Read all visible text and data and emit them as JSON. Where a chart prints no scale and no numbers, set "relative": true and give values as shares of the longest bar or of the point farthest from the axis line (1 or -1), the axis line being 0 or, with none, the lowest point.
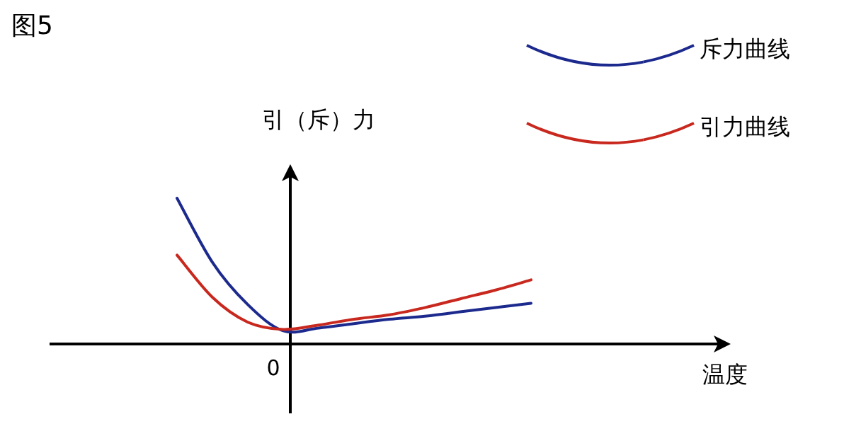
{
  "chart_data": {
    "type": "line",
    "title": "图5",
    "ylabel": "引（斥）力",
    "relative": true,
    "legend": "top right",
    "annotations": [
      "0",
      "温度"
    ],
    "categories": [
      null,
      null,
      null,
      null,
      null,
      null,
      null,
      null,
      null,
      null,
      null
    ],
    "series": [
      {
        "name": "斥力曲线",
        "color": "#1c2a8e",
        "values": [
          1,
          0.56,
          0.27,
          0.09,
          0.11,
          0.14,
          0.17,
          0.19,
          0.22,
          0.25,
          0.28
        ]
      },
      {
        "name": "引力曲线",
        "color": "#c8281e",
        "values": [
          0.61,
          0.32,
          0.15,
          0.1,
          0.13,
          0.17,
          0.2,
          0.25,
          0.31,
          0.37,
          0.44
        ]
      }
    ]
  }
}
